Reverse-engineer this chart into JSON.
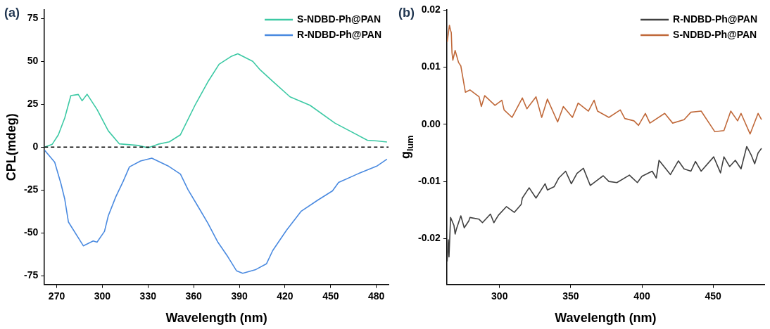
{
  "chart_data": [
    {
      "type": "line",
      "xlabel": "Wavelength (nm)",
      "ylabel": "CPL(mdeg)",
      "annotations": [
        "(a)"
      ],
      "legend": "top right",
      "grid": false,
      "xlim": [
        262,
        488
      ],
      "xticks": [
        270,
        300,
        330,
        360,
        390,
        420,
        450,
        480
      ],
      "ylim": [
        -80,
        80
      ],
      "yticks": [
        -75,
        -50,
        -25,
        0,
        25,
        50,
        75
      ],
      "ref_lines": [
        {
          "axis": "y",
          "value": 0,
          "color": "#000000",
          "line_style": "dashed"
        }
      ],
      "series": [
        {
          "name": "S-NDBD-Ph@PAN",
          "color": "#3cc9a4",
          "x": [
            262.1,
            267.1,
            271.1,
            275.3,
            279.3,
            284.2,
            286.7,
            290,
            296.5,
            303.9,
            311.2,
            323.5,
            330,
            336.6,
            344,
            351.3,
            361.2,
            369.3,
            376.7,
            384.9,
            389,
            398.8,
            403.7,
            411.9,
            423.3,
            436.4,
            452.8,
            474.1,
            480.6,
            487
          ],
          "values": [
            0,
            1.7,
            7.2,
            17,
            30,
            30.7,
            27,
            30.8,
            22,
            9.5,
            1.9,
            1,
            -0.4,
            1.7,
            3.1,
            7.2,
            25,
            38,
            48.3,
            53,
            54.4,
            50,
            45,
            38.4,
            29.3,
            24.4,
            14,
            4,
            3.6,
            3
          ]
        },
        {
          "name": "R-NDBD-Ph@PAN",
          "color": "#4a8ae0",
          "x": [
            262.1,
            268.7,
            272.8,
            275.3,
            277.7,
            287.5,
            294,
            296.5,
            301.4,
            303.9,
            308.8,
            313.7,
            317.8,
            325.1,
            332.5,
            343.1,
            351.3,
            356.3,
            362.8,
            369.3,
            375.9,
            382.4,
            388.2,
            392.2,
            400.4,
            407.8,
            411.9,
            420.9,
            430.7,
            441.3,
            451.2,
            455.2,
            467.5,
            480.6,
            487
          ],
          "values": [
            -1.8,
            -8.8,
            -21.3,
            -30.3,
            -43.6,
            -57.5,
            -54.7,
            -55.4,
            -49.1,
            -40,
            -29,
            -19.9,
            -11.5,
            -8.1,
            -6.4,
            -10.9,
            -15.7,
            -24.8,
            -34.5,
            -44.3,
            -55.4,
            -63.8,
            -72.1,
            -73.5,
            -71.5,
            -68,
            -60.3,
            -48.5,
            -37.3,
            -31,
            -25.5,
            -20.6,
            -15.7,
            -10.9,
            -7
          ]
        }
      ]
    },
    {
      "type": "line",
      "xlabel": "Wavelength (nm)",
      "ylabel": "g$_{lum}$",
      "annotations": [
        "(b)"
      ],
      "legend": "top right",
      "grid": false,
      "xlim": [
        263,
        486
      ],
      "xticks": [
        300,
        350,
        400,
        450
      ],
      "ylim": [
        -0.028,
        0.02
      ],
      "yticks": [
        {
          "value": -0.02,
          "label": "-0.02"
        },
        {
          "value": -0.01,
          "label": "-0.01"
        },
        {
          "value": 0,
          "label": "0.00"
        },
        {
          "value": 0.01,
          "label": "0.01"
        },
        {
          "value": 0.02,
          "label": "0.02"
        }
      ],
      "series": [
        {
          "name": "R-NDBD-Ph@PAN",
          "color": "#404040",
          "x": [
            263.2,
            264,
            264.5,
            265.6,
            268,
            268.8,
            269.6,
            272.8,
            275.2,
            278.4,
            279.2,
            285.6,
            288,
            293.6,
            296,
            299.2,
            304.8,
            310.4,
            315.2,
            316,
            320.8,
            325.6,
            332,
            333.6,
            338.4,
            341.6,
            346.4,
            350.4,
            354.4,
            358.9,
            363.7,
            372.8,
            376.8,
            382.4,
            391.2,
            396.8,
            400,
            407.2,
            410.1,
            412,
            420,
            425.6,
            429.6,
            434.4,
            437.6,
            441.6,
            450.4,
            455.2,
            457.6,
            461.6,
            465.6,
            469.6,
            473.6,
            476.8,
            479.2,
            481.6,
            484
          ],
          "values": [
            -0.024,
            -0.0202,
            -0.0232,
            -0.0163,
            -0.0177,
            -0.0192,
            -0.0184,
            -0.016,
            -0.0181,
            -0.0169,
            -0.0163,
            -0.0166,
            -0.0172,
            -0.0157,
            -0.0172,
            -0.0159,
            -0.0144,
            -0.0154,
            -0.014,
            -0.0129,
            -0.0111,
            -0.0129,
            -0.0104,
            -0.0115,
            -0.0109,
            -0.0094,
            -0.0082,
            -0.0104,
            -0.0086,
            -0.0077,
            -0.0107,
            -0.009,
            -0.01,
            -0.0102,
            -0.0089,
            -0.0102,
            -0.0091,
            -0.0082,
            -0.0094,
            -0.0063,
            -0.0088,
            -0.0064,
            -0.0078,
            -0.0082,
            -0.0065,
            -0.0082,
            -0.0057,
            -0.0085,
            -0.0057,
            -0.0074,
            -0.0063,
            -0.0078,
            -0.0039,
            -0.0054,
            -0.0069,
            -0.005,
            -0.0042
          ]
        },
        {
          "name": "S-NDBD-Ph@PAN",
          "color": "#c0693a",
          "x": [
            263.2,
            264.8,
            265.5,
            266.1,
            266.6,
            267.2,
            268.8,
            271.2,
            272.8,
            276,
            279.2,
            285.6,
            287.2,
            289.6,
            296.8,
            301.6,
            303.2,
            308.8,
            316,
            319.2,
            325.6,
            329.6,
            333.6,
            340.8,
            344.8,
            351.2,
            355.2,
            362.4,
            366.4,
            368.8,
            376.8,
            384.8,
            388,
            394.4,
            397.6,
            402.4,
            405.6,
            416,
            421.6,
            429.6,
            434.4,
            441.6,
            451.2,
            457.6,
            462.4,
            467.2,
            469.6,
            476,
            481.6,
            484
          ],
          "values": [
            0.0144,
            0.0173,
            0.0165,
            0.016,
            0.0125,
            0.0112,
            0.0129,
            0.0108,
            0.0102,
            0.0056,
            0.006,
            0.0048,
            0.0031,
            0.005,
            0.0033,
            0.0042,
            0.0025,
            0.0012,
            0.0046,
            0.0027,
            0.0048,
            0.0012,
            0.0044,
            0.0004,
            0.0031,
            0.0012,
            0.0037,
            0.0023,
            0.0042,
            0.0023,
            0.0012,
            0.0025,
            0.001,
            0.0006,
            -0.0002,
            0.0019,
            0.0002,
            0.0019,
            0.0002,
            0.0008,
            0.0021,
            0.0023,
            -0.0013,
            -0.0011,
            0.0023,
            0.0006,
            0.0019,
            -0.0017,
            0.0019,
            0.0008
          ]
        }
      ]
    }
  ]
}
